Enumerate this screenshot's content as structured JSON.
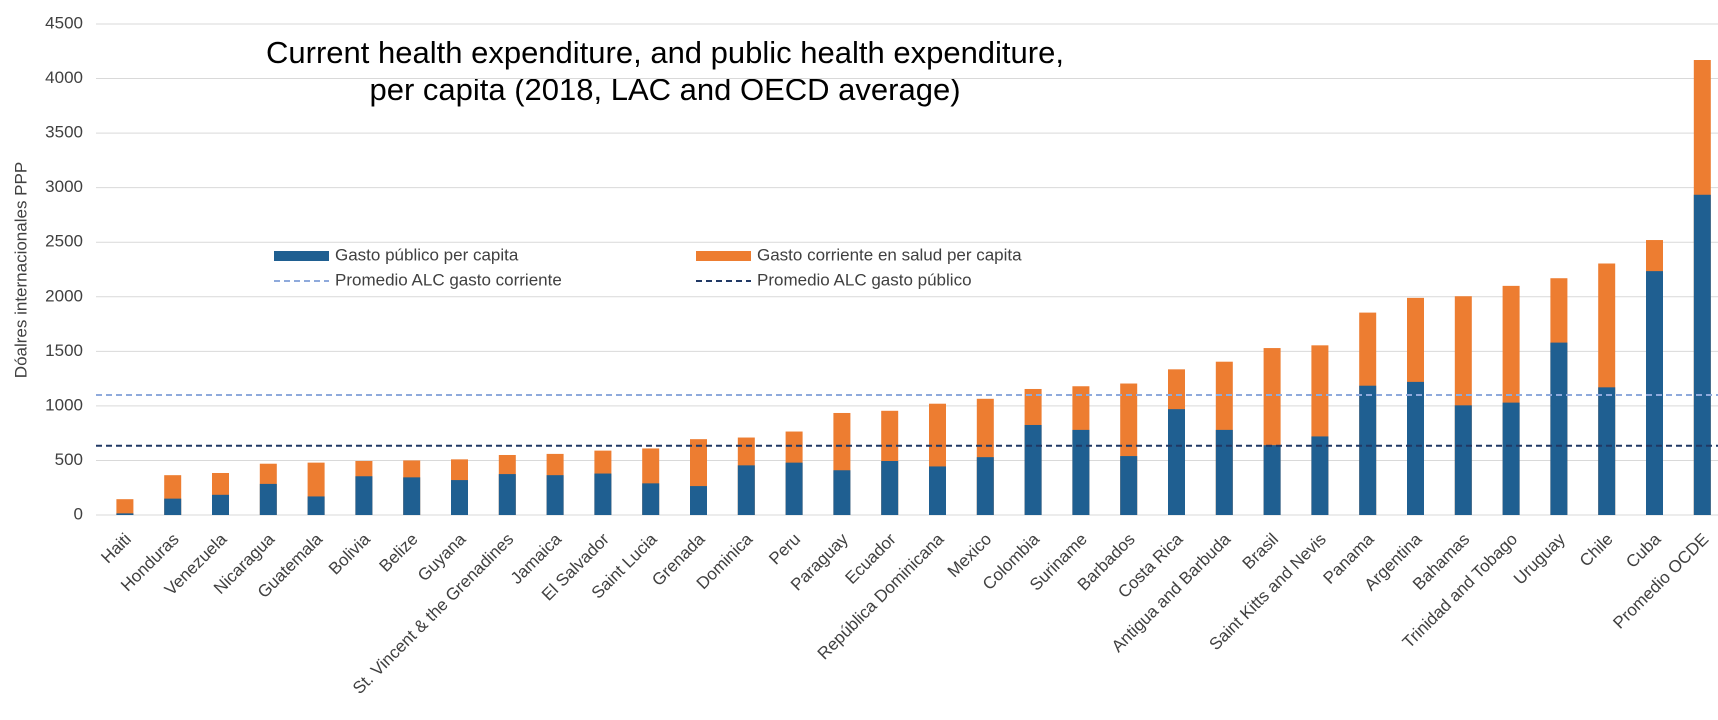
{
  "chart_data": {
    "type": "bar",
    "title": "Current health expenditure, and public health expenditure,",
    "subtitle": "per capita (2018, LAC and OECD average)",
    "y_label": "Dóalres internacionales PPP",
    "categories": [
      "Haiti",
      "Honduras",
      "Venezuela",
      "Nicaragua",
      "Guatemala",
      "Bolivia",
      "Belize",
      "Guyana",
      "St. Vincent & the Grenadines",
      "Jamaica",
      "El Salvador",
      "Saint Lucia",
      "Grenada",
      "Dominica",
      "Peru",
      "Paraguay",
      "Ecuador",
      "República Dominicana",
      "Mexico",
      "Colombia",
      "Suriname",
      "Barbados",
      "Costa Rica",
      "Antigua and Barbuda",
      "Brasil",
      "Saint Kitts and Nevis",
      "Panama",
      "Argentina",
      "Bahamas",
      "Trinidad and Tobago",
      "Uruguay",
      "Chile",
      "Cuba",
      "Promedio OCDE"
    ],
    "series": [
      {
        "name": "Gasto corriente en salud per capita",
        "color": "#ed7d31",
        "values": [
          145,
          365,
          385,
          470,
          480,
          495,
          500,
          510,
          550,
          560,
          590,
          610,
          695,
          710,
          765,
          935,
          955,
          1020,
          1065,
          1155,
          1180,
          1205,
          1335,
          1405,
          1530,
          1555,
          1855,
          1990,
          2005,
          2100,
          2170,
          2305,
          2520,
          4170
        ]
      },
      {
        "name": "Gasto público per capita",
        "color": "#1f5f91",
        "values": [
          15,
          150,
          185,
          285,
          170,
          355,
          345,
          320,
          375,
          365,
          380,
          290,
          265,
          455,
          480,
          410,
          495,
          445,
          530,
          825,
          780,
          540,
          970,
          780,
          640,
          720,
          1185,
          1220,
          1005,
          1030,
          1580,
          1170,
          2235,
          2935
        ]
      }
    ],
    "lines": [
      {
        "name": "Promedio ALC gasto corriente",
        "value": 1100,
        "color": "#8faadc"
      },
      {
        "name": "Promedio ALC gasto público",
        "value": 635,
        "color": "#203864"
      }
    ],
    "ylim": [
      0,
      4500
    ],
    "yticks": [
      0,
      500,
      1000,
      1500,
      2000,
      2500,
      3000,
      3500,
      4000,
      4500
    ],
    "grid": true
  }
}
